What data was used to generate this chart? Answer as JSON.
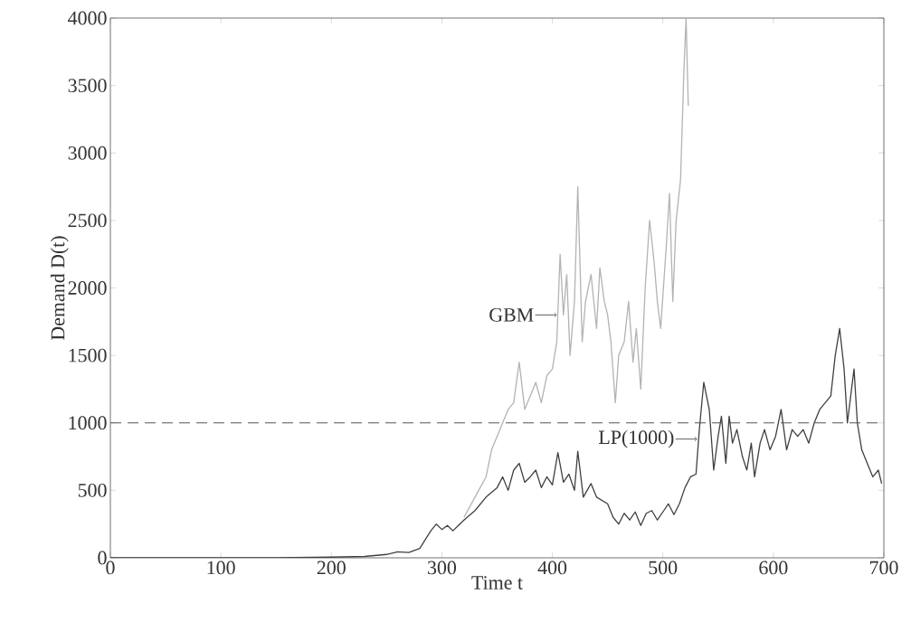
{
  "chart_data": {
    "type": "line",
    "xlabel": "Time t",
    "ylabel": "Demand D(t)",
    "xlim": [
      0,
      700
    ],
    "ylim": [
      0,
      4000
    ],
    "xticks": [
      0,
      100,
      200,
      300,
      400,
      500,
      600,
      700
    ],
    "yticks": [
      0,
      500,
      1000,
      1500,
      2000,
      2500,
      3000,
      3500,
      4000
    ],
    "grid": false,
    "marker": "none",
    "line_style": "solid",
    "ref_lines": [
      {
        "axis": "y",
        "value": 1000,
        "color": "#555555",
        "line_style": "dashed"
      }
    ],
    "annotations": [
      {
        "text": "GBM",
        "x": 404,
        "y": 1800
      },
      {
        "text": "LP(1000)",
        "x": 531,
        "y": 880
      }
    ],
    "series": [
      {
        "color": "#b3b3b3",
        "x": [
          320,
          330,
          340,
          345,
          350,
          355,
          360,
          365,
          370,
          375,
          380,
          385,
          390,
          395,
          400,
          404,
          407,
          410,
          413,
          416,
          420,
          423,
          427,
          430,
          435,
          440,
          443,
          447,
          450,
          453,
          457,
          460,
          465,
          469,
          473,
          476,
          480,
          484,
          488,
          492,
          495,
          498,
          503,
          506,
          509,
          512,
          516,
          519,
          521,
          523
        ],
        "values": [
          300,
          450,
          600,
          800,
          900,
          1000,
          1100,
          1150,
          1450,
          1100,
          1200,
          1300,
          1150,
          1350,
          1400,
          1600,
          2250,
          1800,
          2100,
          1500,
          1900,
          2750,
          1600,
          1900,
          2100,
          1700,
          2150,
          1900,
          1800,
          1600,
          1150,
          1500,
          1600,
          1900,
          1450,
          1700,
          1250,
          2000,
          2500,
          2200,
          1900,
          1700,
          2300,
          2700,
          1900,
          2500,
          2800,
          3600,
          4000,
          3350
        ]
      },
      {
        "color": "#404040",
        "x": [
          0,
          150,
          200,
          230,
          250,
          260,
          270,
          280,
          290,
          295,
          300,
          305,
          310,
          320,
          330,
          340,
          350,
          355,
          360,
          365,
          370,
          375,
          380,
          385,
          390,
          395,
          400,
          405,
          410,
          415,
          420,
          423,
          428,
          435,
          440,
          450,
          455,
          460,
          465,
          470,
          475,
          480,
          485,
          490,
          495,
          500,
          505,
          510,
          515,
          520,
          525,
          530,
          533,
          537,
          542,
          546,
          550,
          553,
          557,
          560,
          563,
          567,
          572,
          576,
          580,
          583,
          588,
          592,
          597,
          602,
          607,
          612,
          617,
          622,
          627,
          632,
          637,
          642,
          647,
          652,
          656,
          660,
          664,
          667,
          670,
          673,
          676,
          680,
          685,
          690,
          695,
          698
        ],
        "values": [
          0,
          0,
          5,
          10,
          25,
          45,
          40,
          70,
          200,
          250,
          210,
          240,
          200,
          280,
          350,
          450,
          520,
          600,
          500,
          650,
          700,
          560,
          600,
          650,
          520,
          600,
          540,
          780,
          560,
          620,
          500,
          790,
          450,
          550,
          450,
          400,
          300,
          250,
          330,
          280,
          340,
          240,
          330,
          350,
          280,
          340,
          400,
          320,
          400,
          520,
          600,
          620,
          950,
          1300,
          1100,
          650,
          900,
          1050,
          700,
          1050,
          850,
          950,
          750,
          650,
          850,
          600,
          850,
          950,
          800,
          900,
          1100,
          800,
          950,
          900,
          950,
          850,
          1000,
          1100,
          1150,
          1200,
          1500,
          1700,
          1400,
          1000,
          1200,
          1400,
          1000,
          800,
          700,
          600,
          650,
          550
        ]
      }
    ]
  }
}
